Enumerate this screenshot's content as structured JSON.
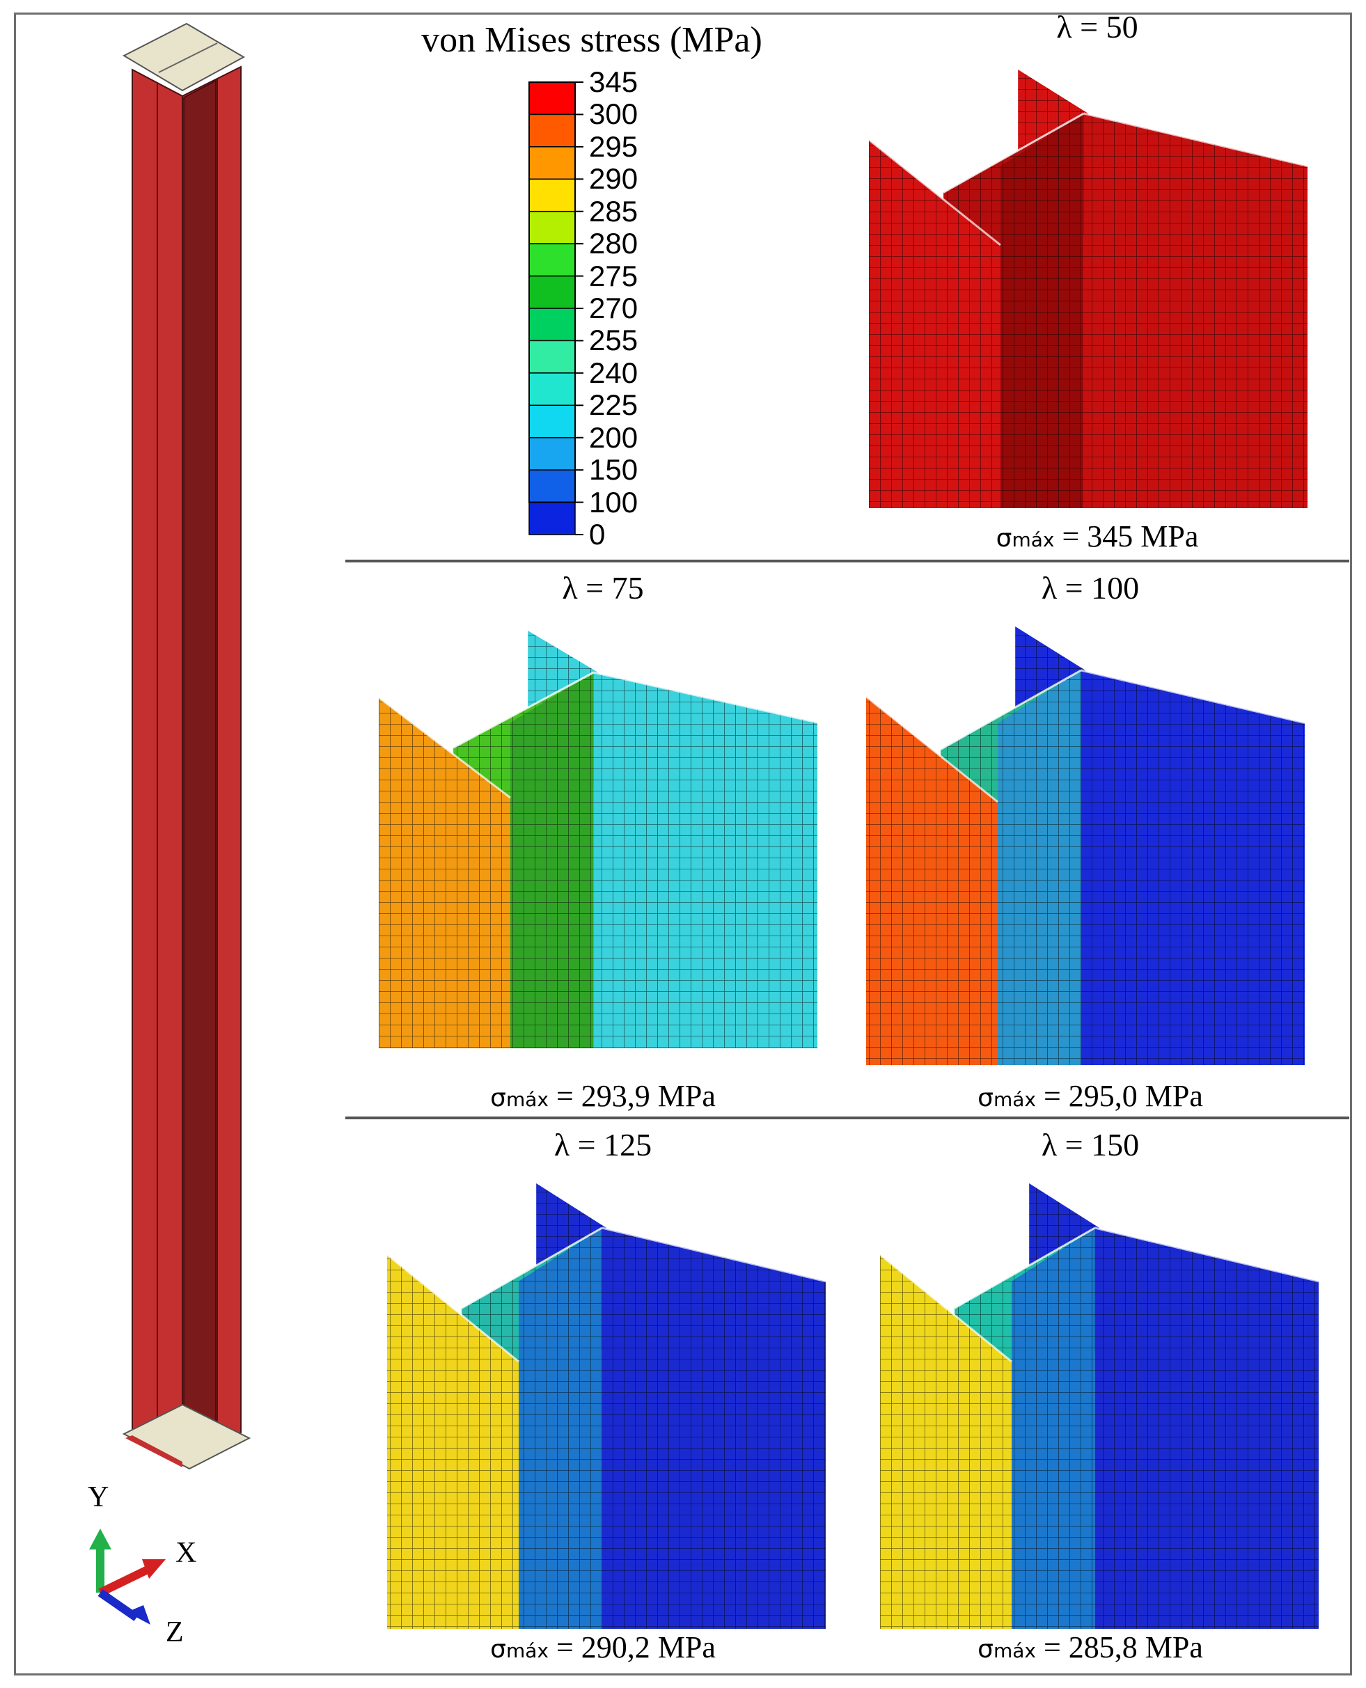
{
  "legend": {
    "title": "von Mises stress (MPa)",
    "ticks": [
      "345",
      "300",
      "295",
      "290",
      "285",
      "280",
      "275",
      "270",
      "255",
      "240",
      "225",
      "200",
      "150",
      "100",
      "0"
    ],
    "colors": [
      "#ff0000",
      "#ff5a00",
      "#ff9800",
      "#ffe000",
      "#b4ee00",
      "#2ce02c",
      "#10c020",
      "#00d060",
      "#32eca4",
      "#20e6d0",
      "#10d8f0",
      "#18a6f0",
      "#1060e8",
      "#0a24e0",
      "#0000ff"
    ]
  },
  "panels": [
    {
      "id": "l50",
      "label": "λ = 50",
      "sigma_value": "= 345 MPa",
      "colors": {
        "left": "#d41212",
        "web": "#b40d0d",
        "webShade": "#8c0808",
        "back": "#d41212",
        "right": "#c61010"
      }
    },
    {
      "id": "l75",
      "label": "λ = 75",
      "sigma_value": "= 293,9 MPa",
      "colors": {
        "left": "#f39a10",
        "web": "#48c422",
        "webShade": "#2a9a2a",
        "back": "#3ad2dc",
        "right": "#3ad2dc"
      }
    },
    {
      "id": "l100",
      "label": "λ = 100",
      "sigma_value": "= 295,0 MPa",
      "colors": {
        "left": "#f65a10",
        "web": "#28b890",
        "webShade": "#2a8ae0",
        "back": "#1a2ad8",
        "right": "#1a2ad8"
      }
    },
    {
      "id": "l125",
      "label": "λ = 125",
      "sigma_value": "= 290,2 MPa",
      "colors": {
        "left": "#f0d51c",
        "web": "#26b8a8",
        "webShade": "#1a60d8",
        "back": "#1a2ad0",
        "right": "#1a2ad0"
      }
    },
    {
      "id": "l150",
      "label": "λ = 150",
      "sigma_value": "= 285,8 MPa",
      "colors": {
        "left": "#efd81c",
        "web": "#20c0a8",
        "webShade": "#1a60d8",
        "back": "#1a2ad0",
        "right": "#1a2ad0"
      }
    }
  ],
  "sigma_symbol": "σ",
  "sigma_subscript": "máx",
  "axes": {
    "y": "Y",
    "x": "X",
    "z": "Z",
    "colors": {
      "y": "#22b04a",
      "x": "#d42020",
      "z": "#1a2ac8"
    }
  },
  "column": {
    "color": "#c43030",
    "shade": "#7a1a1a",
    "cap": "#e8e4cc"
  }
}
